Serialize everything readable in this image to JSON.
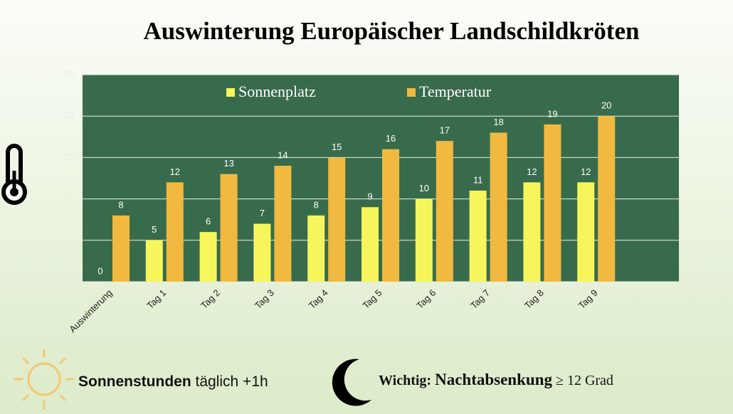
{
  "chart_data": {
    "type": "bar",
    "title": "Auswinterung Europäischer Landschildkröten",
    "categories": [
      "Auswinterung",
      "Tag 1",
      "Tag 2",
      "Tag 3",
      "Tag 4",
      "Tag 5",
      "Tag 6",
      "Tag 7",
      "Tag 8",
      "Tag 9"
    ],
    "series": [
      {
        "name": "Sonnenplatz",
        "color": "#f6f65c",
        "values": [
          0,
          5,
          6,
          7,
          8,
          9,
          10,
          11,
          12,
          12
        ]
      },
      {
        "name": "Temperatur",
        "color": "#f1b93f",
        "values": [
          8,
          12,
          13,
          14,
          15,
          16,
          17,
          18,
          19,
          20
        ]
      }
    ],
    "ylim": [
      0,
      25
    ],
    "yticks": [
      0,
      5,
      10,
      15,
      20,
      25
    ],
    "grid": true,
    "legend": "top"
  },
  "footer": {
    "sun": {
      "bold": "Sonnenstunden",
      "text": "täglich +1h"
    },
    "moon": {
      "label": "Wichtig:",
      "bold": "Nachtabsenkung",
      "text": "≥ 12 Grad"
    }
  }
}
